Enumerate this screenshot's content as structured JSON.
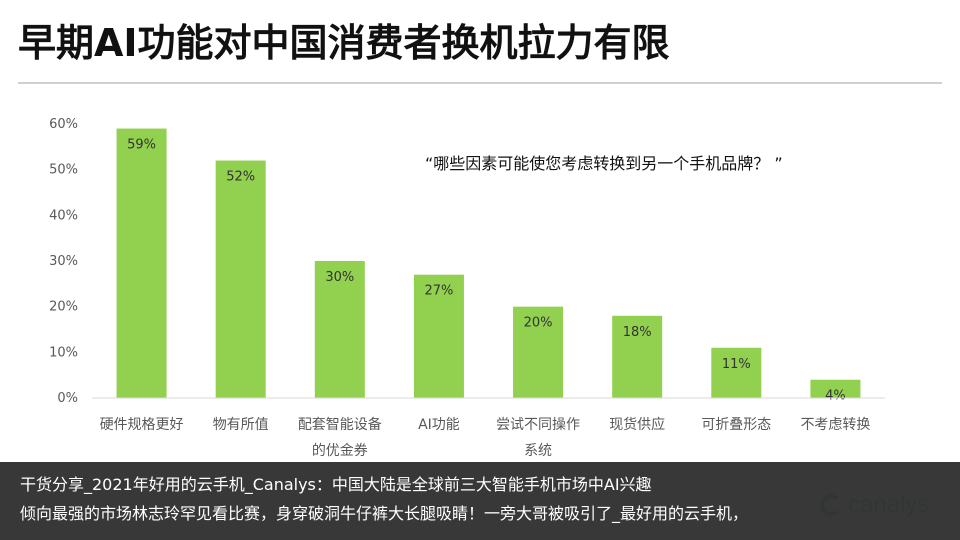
{
  "page": {
    "title": "早期AI功能对中国消费者换机拉力有限",
    "question": "“哪些因素可能使您考虑转换到另一个手机品牌？ ”"
  },
  "overlay": {
    "line1": "干货分享_2021年好用的云手机_Canalys：中国大陆是全球前三大智能手机市场中AI兴趣",
    "line2": "倾向最强的市场林志玲罕见看比赛，身穿破洞牛仔裤大长腿吸睛！一旁大哥被吸引了_最好用的云手机，",
    "brand_text": "canalys"
  },
  "colors": {
    "bar": "#92d050",
    "axis": "#d9d9d9",
    "tick_text": "#595959",
    "overlay_bg": "#000000"
  },
  "chart_data": {
    "type": "bar",
    "title": "",
    "xlabel": "",
    "ylabel": "",
    "categories": [
      "硬件规格更好",
      "物有所值",
      "配套智能设备的优金券",
      "AI功能",
      "尝试不同操作系统",
      "现货供应",
      "可折叠形态",
      "不考虑转换"
    ],
    "values": [
      59,
      52,
      30,
      27,
      20,
      18,
      11,
      4
    ],
    "data_labels": [
      "59%",
      "52%",
      "30%",
      "27%",
      "20%",
      "18%",
      "11%",
      "4%"
    ],
    "yticks": [
      0,
      10,
      20,
      30,
      40,
      50,
      60
    ],
    "ytick_labels": [
      "0%",
      "10%",
      "20%",
      "30%",
      "40%",
      "50%",
      "60%"
    ],
    "ylim": [
      0,
      60
    ],
    "grid": false,
    "legend": "none"
  }
}
